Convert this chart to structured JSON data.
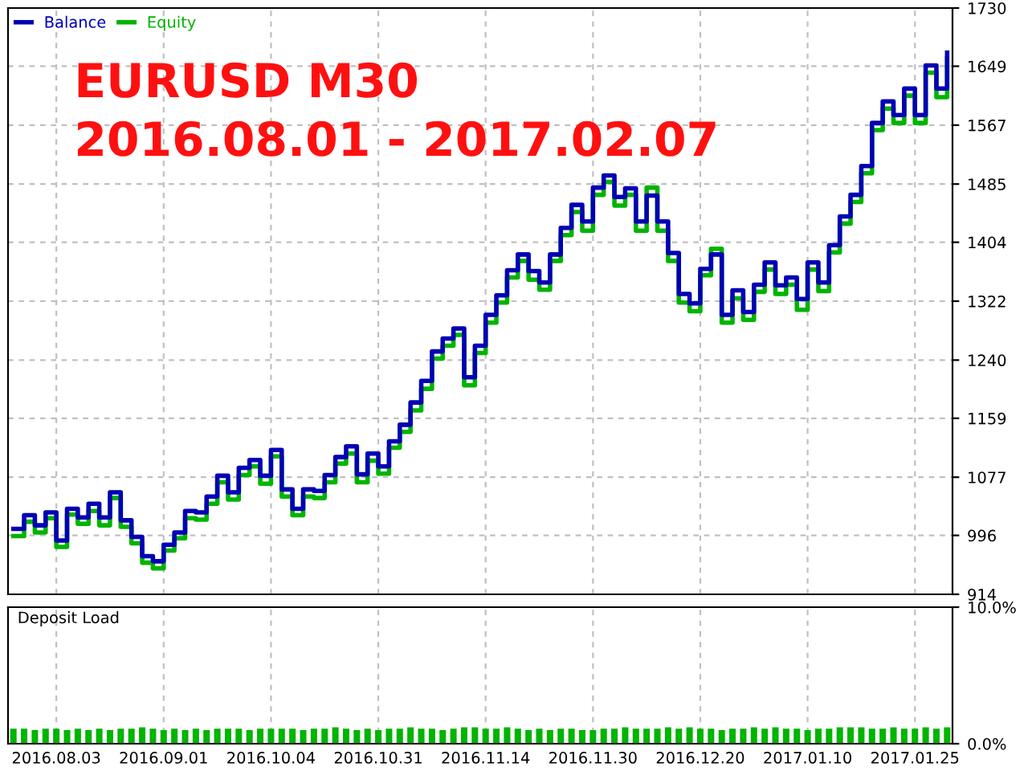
{
  "chart_data": [
    {
      "type": "step",
      "annotations": [
        "EURUSD M30",
        "2016.08.01 - 2017.02.07"
      ],
      "categories": [
        null,
        null,
        null,
        null,
        "2016.08.03",
        null,
        null,
        null,
        null,
        null,
        null,
        null,
        null,
        null,
        "2016.09.01",
        null,
        null,
        null,
        null,
        null,
        null,
        null,
        null,
        null,
        "2016.10.04",
        null,
        null,
        null,
        null,
        null,
        null,
        null,
        null,
        null,
        "2016.10.31",
        null,
        null,
        null,
        null,
        null,
        null,
        null,
        null,
        null,
        "2016.11.14",
        null,
        null,
        null,
        null,
        null,
        null,
        null,
        null,
        null,
        "2016.11.30",
        null,
        null,
        null,
        null,
        null,
        null,
        null,
        null,
        null,
        "2016.12.20",
        null,
        null,
        null,
        null,
        null,
        null,
        null,
        null,
        null,
        "2017.01.10",
        null,
        null,
        null,
        null,
        null,
        null,
        null,
        null,
        null,
        "2017.01.25",
        null,
        null,
        null
      ],
      "series": [
        {
          "name": "Balance",
          "color": "#0000b4",
          "values": [
            1005,
            1024,
            1010,
            1028,
            989,
            1033,
            1021,
            1040,
            1021,
            1056,
            1017,
            994,
            967,
            960,
            983,
            1000,
            1030,
            1028,
            1050,
            1079,
            1056,
            1090,
            1101,
            1079,
            1115,
            1060,
            1033,
            1060,
            1058,
            1080,
            1105,
            1120,
            1081,
            1110,
            1092,
            1127,
            1150,
            1181,
            1211,
            1252,
            1270,
            1284,
            1216,
            1260,
            1303,
            1330,
            1365,
            1387,
            1364,
            1348,
            1387,
            1424,
            1456,
            1433,
            1480,
            1497,
            1467,
            1479,
            1433,
            1469,
            1433,
            1389,
            1332,
            1319,
            1367,
            1387,
            1303,
            1337,
            1307,
            1345,
            1376,
            1344,
            1355,
            1325,
            1376,
            1348,
            1400,
            1440,
            1470,
            1510,
            1570,
            1600,
            1581,
            1618,
            1581,
            1650,
            1618,
            1668
          ]
        },
        {
          "name": "Equity",
          "color": "#00b400",
          "values": [
            995,
            1015,
            1000,
            1020,
            980,
            1025,
            1012,
            1030,
            1010,
            1048,
            1008,
            985,
            958,
            950,
            975,
            992,
            1020,
            1018,
            1040,
            1070,
            1046,
            1080,
            1092,
            1068,
            1106,
            1050,
            1024,
            1050,
            1048,
            1070,
            1096,
            1110,
            1070,
            1100,
            1082,
            1118,
            1140,
            1170,
            1200,
            1242,
            1260,
            1275,
            1205,
            1250,
            1292,
            1320,
            1355,
            1378,
            1352,
            1338,
            1378,
            1414,
            1446,
            1420,
            1470,
            1488,
            1455,
            1470,
            1420,
            1480,
            1420,
            1378,
            1320,
            1308,
            1358,
            1395,
            1292,
            1326,
            1296,
            1335,
            1366,
            1332,
            1345,
            1310,
            1366,
            1336,
            1390,
            1430,
            1460,
            1500,
            1560,
            1590,
            1570,
            1608,
            1570,
            1640,
            1606,
            1660
          ]
        }
      ],
      "ylim": [
        914,
        1730
      ],
      "yticks": [
        914,
        996,
        1077,
        1159,
        1240,
        1322,
        1404,
        1485,
        1567,
        1649,
        1730
      ],
      "tick_labels": "y",
      "grid": true,
      "legend": "top left",
      "line_style": "solid",
      "marker": "none"
    },
    {
      "type": "bar",
      "title": "Deposit Load",
      "categories": [
        null,
        null,
        null,
        null,
        "2016.08.03",
        null,
        null,
        null,
        null,
        null,
        null,
        null,
        null,
        null,
        "2016.09.01",
        null,
        null,
        null,
        null,
        null,
        null,
        null,
        null,
        null,
        "2016.10.04",
        null,
        null,
        null,
        null,
        null,
        null,
        null,
        null,
        null,
        "2016.10.31",
        null,
        null,
        null,
        null,
        null,
        null,
        null,
        null,
        null,
        "2016.11.14",
        null,
        null,
        null,
        null,
        null,
        null,
        null,
        null,
        null,
        "2016.11.30",
        null,
        null,
        null,
        null,
        null,
        null,
        null,
        null,
        null,
        "2016.12.20",
        null,
        null,
        null,
        null,
        null,
        null,
        null,
        null,
        null,
        "2017.01.10",
        null,
        null,
        null,
        null,
        null,
        null,
        null,
        null,
        null,
        "2017.01.25",
        null,
        null,
        null
      ],
      "values": [
        1.1,
        1.1,
        1.0,
        1.1,
        1.1,
        1.0,
        1.1,
        1.0,
        1.1,
        1.0,
        1.1,
        1.1,
        1.2,
        1.1,
        1.0,
        1.1,
        1.0,
        1.1,
        1.0,
        1.1,
        1.1,
        1.1,
        1.0,
        1.1,
        1.1,
        1.1,
        1.1,
        1.0,
        1.1,
        1.1,
        1.2,
        1.1,
        1.0,
        1.1,
        1.0,
        1.1,
        1.1,
        1.2,
        1.1,
        1.1,
        1.0,
        1.1,
        1.2,
        1.2,
        1.1,
        1.1,
        1.2,
        1.1,
        1.0,
        1.1,
        1.0,
        1.1,
        1.1,
        1.0,
        1.0,
        1.1,
        1.1,
        1.2,
        1.1,
        1.1,
        1.1,
        1.2,
        1.1,
        1.2,
        1.1,
        1.1,
        1.0,
        1.1,
        1.1,
        1.2,
        1.1,
        1.2,
        1.1,
        1.1,
        1.0,
        1.1,
        1.1,
        1.2,
        1.2,
        1.2,
        1.1,
        1.1,
        1.2,
        1.1,
        1.1,
        1.2,
        1.1,
        1.2
      ],
      "color": "#00b400",
      "ylim": [
        0,
        10
      ],
      "yticks": [
        {
          "value": 0,
          "label": "0.0%"
        },
        {
          "value": 10,
          "label": "10.0%"
        }
      ],
      "grid": "x"
    }
  ]
}
